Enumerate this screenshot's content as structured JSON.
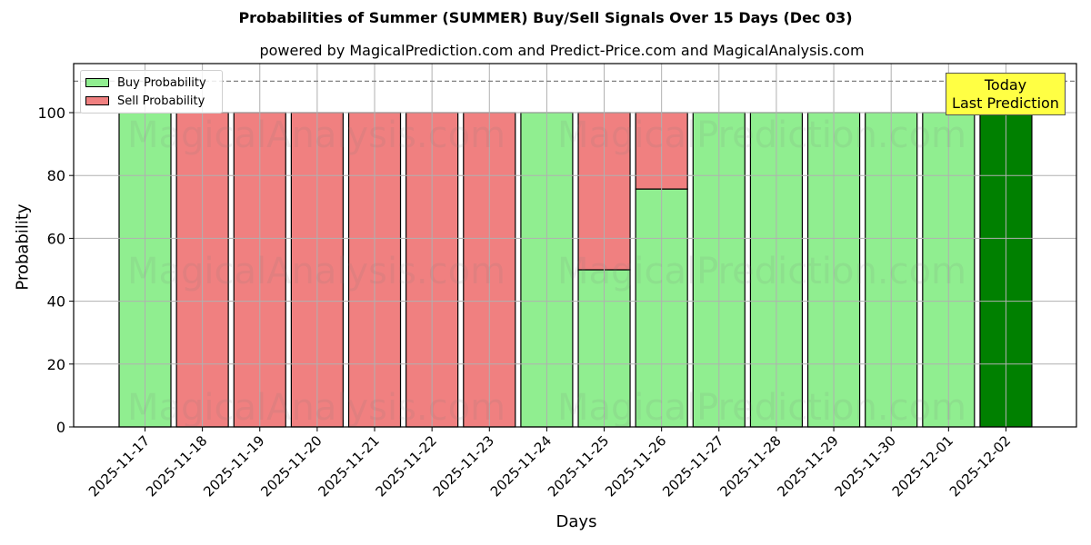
{
  "header": {
    "title": "Probabilities of Summer (SUMMER) Buy/Sell Signals Over 15 Days (Dec 03)",
    "subtitle": "powered by MagicalPrediction.com and Predict-Price.com and MagicalAnalysis.com"
  },
  "legend": {
    "buy_label": "Buy Probability",
    "sell_label": "Sell Probability"
  },
  "annotation": {
    "line1": "Today",
    "line2": "Last Prediction"
  },
  "axes": {
    "xlabel": "Days",
    "ylabel": "Probability"
  },
  "watermarks": [
    "MagicalAnalysis.com",
    "MagicalPrediction.com"
  ],
  "colors": {
    "buy": "#90ee90",
    "sell": "#f08080",
    "today_buy": "#008000",
    "annotation_bg": "#ffff44",
    "grid": "#b0b0b0",
    "reference_line": "#808080"
  },
  "chart_data": {
    "type": "bar",
    "stacked": true,
    "title": "Probabilities of Summer (SUMMER) Buy/Sell Signals Over 15 Days (Dec 03)",
    "subtitle": "powered by MagicalPrediction.com and Predict-Price.com and MagicalAnalysis.com",
    "xlabel": "Days",
    "ylabel": "Probability",
    "ylim": [
      0,
      115
    ],
    "yticks": [
      0,
      20,
      40,
      60,
      80,
      100
    ],
    "grid": true,
    "legend_position": "upper left",
    "reference_line": {
      "y": 110,
      "style": "dashed"
    },
    "categories": [
      "2025-11-17",
      "2025-11-18",
      "2025-11-19",
      "2025-11-20",
      "2025-11-21",
      "2025-11-22",
      "2025-11-23",
      "2025-11-24",
      "2025-11-25",
      "2025-11-26",
      "2025-11-27",
      "2025-11-28",
      "2025-11-29",
      "2025-11-30",
      "2025-12-01",
      "2025-12-02"
    ],
    "series": [
      {
        "name": "Buy Probability",
        "values": [
          100,
          0,
          0,
          0,
          0,
          0,
          0,
          100,
          50,
          75.7,
          100,
          100,
          100,
          100,
          100,
          100
        ]
      },
      {
        "name": "Sell Probability",
        "values": [
          0,
          100,
          100,
          100,
          100,
          100,
          100,
          0,
          50,
          24.3,
          0,
          0,
          0,
          0,
          0,
          0
        ]
      }
    ],
    "annotations": [
      {
        "text": "Today\nLast Prediction",
        "x": "2025-12-02"
      }
    ],
    "highlight": {
      "category": "2025-12-02",
      "color": "#008000"
    }
  }
}
